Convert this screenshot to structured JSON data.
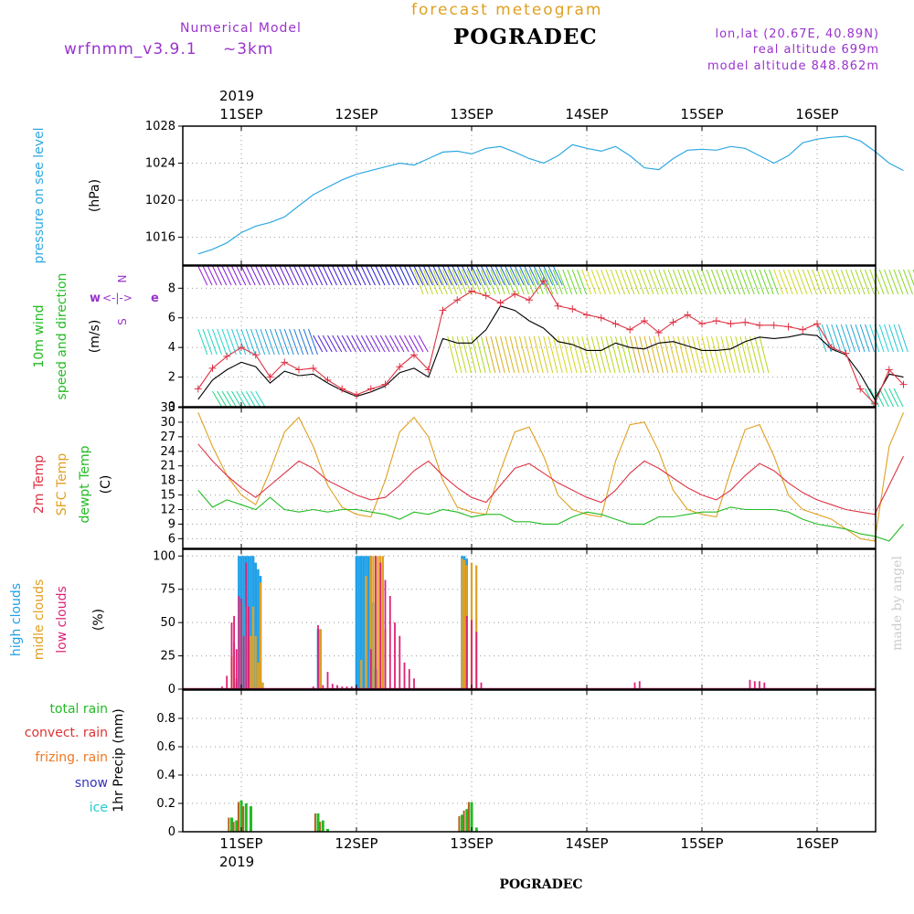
{
  "header": {
    "model_label": "Numerical Model",
    "model_name": "wrfnmm_v3.9.1",
    "resolution": "~3km",
    "product_title": "forecast meteogram",
    "station": "POGRADEC",
    "lonlat": "lon,lat (20.67E, 40.89N)",
    "real_altitude": "real altitude 699m",
    "model_altitude": "model altitude  848.862m"
  },
  "top_axis": {
    "year": "2019",
    "days": [
      "11SEP",
      "12SEP",
      "13SEP",
      "14SEP",
      "15SEP",
      "16SEP"
    ]
  },
  "bottom_axis": {
    "year": "2019",
    "days": [
      "11SEP",
      "12SEP",
      "13SEP",
      "14SEP",
      "15SEP",
      "16SEP"
    ],
    "station": "POGRADEC"
  },
  "credit": "made by angel",
  "colors": {
    "pressure": "#2fa8e0",
    "wind_label": "#22bb22",
    "compass": "#9933cc",
    "temp2m": "#dd3344",
    "tsfc": "#e0a020",
    "dewpt": "#22bb22",
    "cloud_high": "#1fa0e8",
    "cloud_mid": "#e0a020",
    "cloud_low": "#dd2277",
    "rain_total": "#22bb22",
    "rain_conv": "#dd3333",
    "rain_frz": "#ee7722",
    "snow": "#3333bb",
    "ice": "#22cccc"
  },
  "panels": {
    "pressure": {
      "labels": [
        "pressure on see level",
        "(hPa)"
      ]
    },
    "wind": {
      "labels": [
        "10m wind",
        "speed and direction",
        "(m/s)"
      ],
      "compass": [
        "w",
        "<-|->",
        "e",
        "N",
        "S"
      ]
    },
    "temp": {
      "labels": [
        "2m Temp",
        "SFC Temp",
        "dewpt Temp",
        "(C)"
      ]
    },
    "clouds": {
      "labels": [
        "high  clouds",
        "midle clouds",
        "low   clouds",
        "(%)"
      ]
    },
    "precip": {
      "labels": [
        "total     rain",
        "convect. rain",
        "frizing. rain",
        "snow",
        "ice",
        "1hr Precip (mm)"
      ]
    }
  },
  "chart_data": [
    {
      "type": "line",
      "name": "pressure",
      "ylim": [
        1013,
        1028
      ],
      "yticks": [
        "1016",
        "1020",
        "1024",
        "1028"
      ],
      "x": [
        0,
        3,
        6,
        9,
        12,
        15,
        18,
        21,
        24,
        27,
        30,
        33,
        36,
        39,
        42,
        45,
        48,
        51,
        54,
        57,
        60,
        63,
        66,
        69,
        72,
        75,
        78,
        81,
        84,
        87,
        90,
        93,
        96,
        99,
        102,
        105,
        108,
        111,
        114,
        117,
        120,
        123,
        126,
        129,
        132,
        135,
        138,
        141,
        144,
        147
      ],
      "series": [
        {
          "values": [
            1014.2,
            1014.7,
            1015.4,
            1016.5,
            1017.2,
            1017.6,
            1018.2,
            1019.4,
            1020.6,
            1021.4,
            1022.2,
            1022.8,
            1023.2,
            1023.6,
            1024.0,
            1023.8,
            1024.5,
            1025.2,
            1025.3,
            1025.0,
            1025.6,
            1025.8,
            1025.2,
            1024.5,
            1024.0,
            1024.8,
            1026.0,
            1025.6,
            1025.3,
            1025.8,
            1024.8,
            1023.5,
            1023.3,
            1024.5,
            1025.4,
            1025.5,
            1025.4,
            1025.8,
            1025.6,
            1024.8,
            1024.0,
            1024.8,
            1026.2,
            1026.6,
            1026.8,
            1026.9,
            1026.4,
            1025.3,
            1024.0,
            1023.2
          ]
        }
      ]
    },
    {
      "type": "line",
      "name": "wind",
      "ylim": [
        0,
        9.5
      ],
      "yticks": [
        "0",
        "2",
        "4",
        "6",
        "8"
      ],
      "x": [
        0,
        3,
        6,
        9,
        12,
        15,
        18,
        21,
        24,
        27,
        30,
        33,
        36,
        39,
        42,
        45,
        48,
        51,
        54,
        57,
        60,
        63,
        66,
        69,
        72,
        75,
        78,
        81,
        84,
        87,
        90,
        93,
        96,
        99,
        102,
        105,
        108,
        111,
        114,
        117,
        120,
        123,
        126,
        129,
        132,
        135,
        138,
        141,
        144,
        147
      ],
      "series": [
        {
          "values": [
            1.2,
            2.6,
            3.4,
            4.0,
            3.5,
            2.0,
            3.0,
            2.5,
            2.6,
            1.8,
            1.2,
            0.8,
            1.2,
            1.5,
            2.7,
            3.5,
            2.5,
            6.5,
            7.2,
            7.8,
            7.5,
            7.0,
            7.6,
            7.2,
            8.5,
            6.8,
            6.6,
            6.2,
            6.0,
            5.6,
            5.2,
            5.8,
            5.0,
            5.7,
            6.2,
            5.6,
            5.8,
            5.6,
            5.7,
            5.5,
            5.5,
            5.4,
            5.2,
            5.6,
            4.0,
            3.6,
            1.2,
            0.2,
            2.5,
            1.5
          ]
        },
        {
          "values": [
            0.5,
            1.8,
            2.5,
            3.0,
            2.7,
            1.6,
            2.4,
            2.1,
            2.2,
            1.6,
            1.1,
            0.7,
            1.0,
            1.4,
            2.3,
            2.6,
            2.0,
            4.6,
            4.3,
            4.3,
            5.2,
            6.8,
            6.5,
            5.8,
            5.3,
            4.4,
            4.2,
            3.8,
            3.8,
            4.3,
            4.0,
            3.9,
            4.3,
            4.4,
            4.1,
            3.8,
            3.8,
            3.9,
            4.4,
            4.7,
            4.6,
            4.7,
            4.9,
            4.8,
            3.9,
            3.5,
            2.2,
            0.5,
            2.2,
            2.0
          ]
        }
      ]
    },
    {
      "type": "line",
      "name": "temp",
      "ylim": [
        4,
        33
      ],
      "yticks": [
        "6",
        "9",
        "12",
        "15",
        "18",
        "21",
        "24",
        "27",
        "30",
        "33"
      ],
      "x": [
        0,
        3,
        6,
        9,
        12,
        15,
        18,
        21,
        24,
        27,
        30,
        33,
        36,
        39,
        42,
        45,
        48,
        51,
        54,
        57,
        60,
        63,
        66,
        69,
        72,
        75,
        78,
        81,
        84,
        87,
        90,
        93,
        96,
        99,
        102,
        105,
        108,
        111,
        114,
        117,
        120,
        123,
        126,
        129,
        132,
        135,
        138,
        141,
        144,
        147
      ],
      "series": [
        {
          "values": [
            25.5,
            22.0,
            19.0,
            16.5,
            14.5,
            17.0,
            19.5,
            22.0,
            20.5,
            18.0,
            16.5,
            15.0,
            14.0,
            14.5,
            17.0,
            20.0,
            22.0,
            19.0,
            16.5,
            14.5,
            13.5,
            17.0,
            20.5,
            21.5,
            19.5,
            17.5,
            16.0,
            14.5,
            13.5,
            16.0,
            19.5,
            22.0,
            20.5,
            18.5,
            16.5,
            15.0,
            14.0,
            16.0,
            19.0,
            21.5,
            20.0,
            17.5,
            15.5,
            14.0,
            13.0,
            12.0,
            11.5,
            11.0,
            17.0,
            23.0
          ]
        },
        {
          "values": [
            32.0,
            25.0,
            19.0,
            15.0,
            13.0,
            20.0,
            28.0,
            31.0,
            25.0,
            17.0,
            12.5,
            11.0,
            10.5,
            18.0,
            28.0,
            31.0,
            27.0,
            18.0,
            12.5,
            11.5,
            11.0,
            20.0,
            28.0,
            29.0,
            23.0,
            15.0,
            12.0,
            11.0,
            10.5,
            22.0,
            29.5,
            30.0,
            24.0,
            16.0,
            12.0,
            11.0,
            10.5,
            20.0,
            28.5,
            29.5,
            23.0,
            15.0,
            12.0,
            11.0,
            10.0,
            8.0,
            6.0,
            5.5,
            25.0,
            32.0
          ]
        },
        {
          "values": [
            16.0,
            12.5,
            14.0,
            13.0,
            12.0,
            14.5,
            12.0,
            11.5,
            12.0,
            11.5,
            12.0,
            12.0,
            11.5,
            11.0,
            10.0,
            11.5,
            11.0,
            12.0,
            11.5,
            10.5,
            11.0,
            11.0,
            9.5,
            9.5,
            9.0,
            9.0,
            10.5,
            11.5,
            11.0,
            10.0,
            9.0,
            9.0,
            10.5,
            10.5,
            11.0,
            11.5,
            11.5,
            12.5,
            12.0,
            12.0,
            12.0,
            11.5,
            10.0,
            9.0,
            8.5,
            8.0,
            7.0,
            6.5,
            5.5,
            9.0
          ]
        }
      ]
    },
    {
      "type": "bar",
      "name": "clouds",
      "ylim": [
        0,
        105
      ],
      "yticks": [
        "0",
        "25",
        "50",
        "75",
        "100"
      ],
      "series": [
        {
          "name": "high",
          "x": [
            8,
            8.5,
            9,
            9.5,
            10,
            10.5,
            11,
            11.5,
            12,
            12.5,
            13,
            25,
            25.5,
            33,
            33.5,
            34,
            34.5,
            35,
            35.5,
            36,
            36.5,
            37,
            55,
            55.5,
            56
          ],
          "values": [
            5,
            100,
            100,
            100,
            100,
            100,
            100,
            100,
            95,
            90,
            85,
            45,
            45,
            100,
            100,
            100,
            100,
            100,
            100,
            100,
            65,
            15,
            100,
            100,
            98
          ]
        },
        {
          "name": "midle",
          "x": [
            7,
            7.5,
            8,
            9,
            10,
            11,
            11.5,
            12,
            12.5,
            13,
            13.5,
            25.5,
            34,
            35,
            36,
            36.5,
            37,
            37.5,
            38,
            38.5,
            39,
            55,
            55.5,
            56,
            57,
            58
          ],
          "values": [
            25,
            35,
            8,
            65,
            62,
            40,
            62,
            40,
            20,
            80,
            5,
            45,
            22,
            85,
            100,
            100,
            100,
            100,
            100,
            100,
            45,
            98,
            97,
            93,
            95,
            93
          ]
        },
        {
          "name": "low",
          "x": [
            5,
            6,
            7,
            7.5,
            8,
            8.5,
            9,
            9.5,
            10,
            10.5,
            24,
            25,
            26,
            27,
            28,
            29,
            30,
            31,
            32,
            33,
            36,
            37,
            38,
            39,
            40,
            41,
            42,
            43,
            44,
            45,
            56,
            57,
            58,
            59,
            91,
            92,
            115,
            116,
            117,
            118
          ],
          "values": [
            2,
            10,
            50,
            55,
            30,
            70,
            68,
            40,
            95,
            62,
            2,
            48,
            3,
            13,
            4,
            3,
            2,
            2,
            2,
            2,
            30,
            100,
            95,
            82,
            70,
            50,
            40,
            20,
            15,
            8,
            55,
            52,
            43,
            5,
            5,
            6,
            7,
            6,
            6,
            5
          ]
        }
      ]
    },
    {
      "type": "bar",
      "name": "precip",
      "ylim": [
        0,
        1.0
      ],
      "yticks": [
        "0",
        "0.2",
        "0.4",
        "0.6",
        "0.8"
      ],
      "series": [
        {
          "name": "total",
          "x": [
            7,
            8,
            9,
            10,
            11,
            25,
            26,
            27,
            55,
            56,
            57,
            58
          ],
          "values": [
            0.1,
            0.08,
            0.22,
            0.2,
            0.18,
            0.13,
            0.08,
            0.02,
            0.12,
            0.16,
            0.21,
            0.03
          ]
        },
        {
          "name": "convect",
          "x": [
            7,
            8,
            9,
            10,
            25,
            26,
            55,
            56,
            57
          ],
          "values": [
            0.1,
            0.07,
            0.21,
            0.18,
            0.13,
            0.07,
            0.11,
            0.15,
            0.21
          ]
        }
      ]
    }
  ]
}
